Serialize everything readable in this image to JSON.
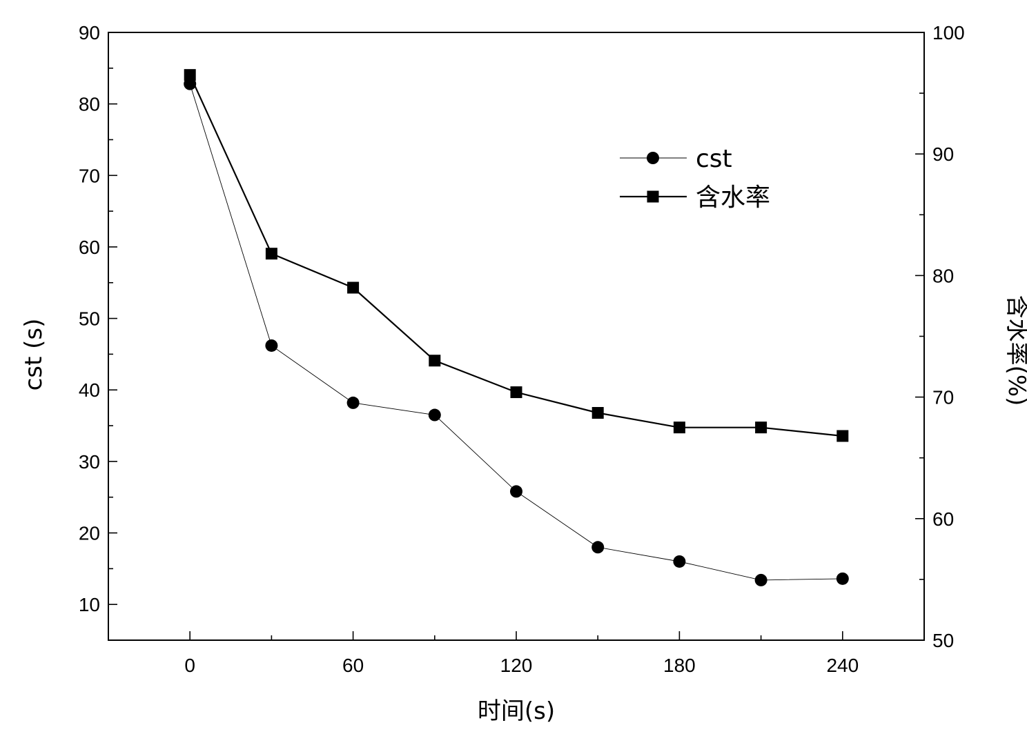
{
  "chart_data": {
    "type": "line",
    "xlabel": "时间(s)",
    "ylabel": "cst (s)",
    "y2label": "含水率(%)",
    "xlim": [
      -30,
      270
    ],
    "ylim": [
      5,
      90
    ],
    "y2lim": [
      50,
      100
    ],
    "xticks": [
      0,
      60,
      120,
      180,
      240
    ],
    "yticks": [
      10,
      20,
      30,
      40,
      50,
      60,
      70,
      80,
      90
    ],
    "y2ticks": [
      50,
      60,
      70,
      80,
      90,
      100
    ],
    "grid": false,
    "legend": "upper-right",
    "series": [
      {
        "name": "cst",
        "axis": "left",
        "marker": "circle",
        "line": "thin",
        "x": [
          0,
          30,
          60,
          90,
          120,
          150,
          180,
          210,
          240
        ],
        "values": [
          82.8,
          46.2,
          38.2,
          36.5,
          25.8,
          18.0,
          16.0,
          13.4,
          13.6
        ]
      },
      {
        "name": "含水率",
        "axis": "right",
        "marker": "square",
        "line": "thick",
        "x": [
          0,
          30,
          60,
          90,
          120,
          150,
          180,
          210,
          240
        ],
        "values": [
          96.5,
          81.8,
          79.0,
          73.0,
          70.4,
          68.7,
          67.5,
          67.5,
          66.8
        ]
      }
    ]
  }
}
